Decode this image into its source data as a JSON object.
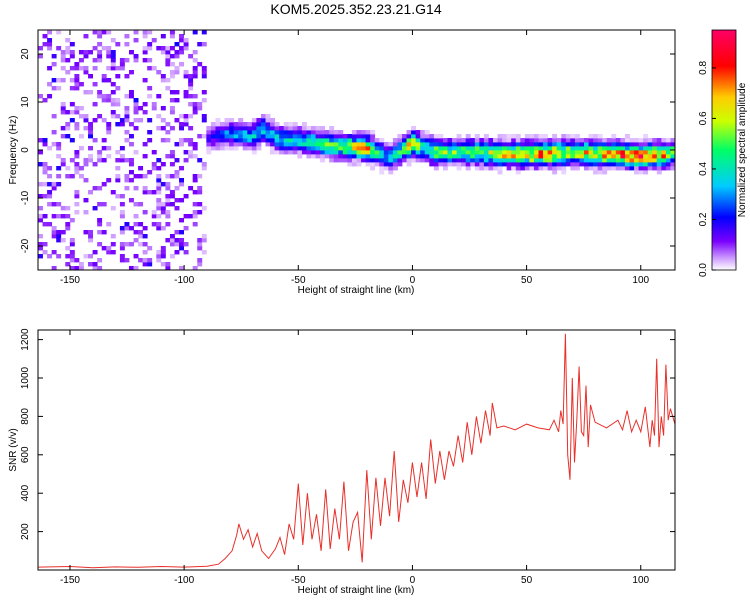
{
  "chart_data": [
    {
      "type": "heatmap",
      "title": "KOM5.2025.352.23.21.G14",
      "xlabel": "Height of straight line (km)",
      "ylabel": "Frequency (Hz)",
      "xlim": [
        -164,
        115
      ],
      "ylim": [
        -25,
        25
      ],
      "xticks": [
        -150,
        -100,
        -50,
        0,
        50,
        100
      ],
      "yticks": [
        -20,
        -10,
        0,
        10,
        20
      ],
      "colorbar": {
        "label": "Normalized spectral amplitude",
        "range": [
          0,
          0.95
        ],
        "ticks": [
          "0.0",
          "0.2",
          "0.4",
          "0.6",
          "0.8"
        ],
        "tick_values": [
          0,
          0.2,
          0.4,
          0.6,
          0.8
        ],
        "colors": [
          "#ffffff",
          "#cc99ff",
          "#7a00ff",
          "#0000ff",
          "#00ccff",
          "#00ff66",
          "#ccff00",
          "#ffcc00",
          "#ff0000",
          "#ff0066"
        ]
      },
      "noise_region": {
        "x_from": -164,
        "x_to": -90,
        "y_range": [
          -25,
          25
        ],
        "level": 0.05
      },
      "ridge": {
        "x": [
          -90,
          -80,
          -70,
          -65,
          -60,
          -50,
          -40,
          -30,
          -20,
          -15,
          -10,
          -5,
          0,
          5,
          10,
          20,
          30,
          40,
          50,
          60,
          70,
          80,
          90,
          100,
          110,
          115
        ],
        "freq": [
          2.5,
          3.5,
          2.8,
          4.5,
          2.5,
          2.0,
          1.2,
          0.8,
          0.5,
          -0.5,
          -1.5,
          -0.2,
          1.5,
          0.5,
          -0.5,
          -0.3,
          -0.5,
          -0.8,
          -0.8,
          -0.8,
          -0.5,
          -0.8,
          -0.9,
          -1.2,
          -1.0,
          -0.5
        ],
        "amplitude": [
          0.15,
          0.3,
          0.35,
          0.4,
          0.35,
          0.4,
          0.45,
          0.55,
          0.75,
          0.4,
          0.35,
          0.45,
          0.7,
          0.4,
          0.6,
          0.5,
          0.55,
          0.65,
          0.7,
          0.75,
          0.6,
          0.7,
          0.75,
          0.85,
          0.7,
          0.5
        ]
      }
    },
    {
      "type": "line",
      "xlabel": "Height of straight line (km)",
      "ylabel": "SNR (v/v)",
      "xlim": [
        -164,
        115
      ],
      "ylim": [
        0,
        1250
      ],
      "xticks": [
        -150,
        -100,
        -50,
        0,
        50,
        100
      ],
      "yticks": [
        200,
        400,
        600,
        800,
        1000,
        1200
      ],
      "color": "#e8302a",
      "series": [
        {
          "name": "SNR",
          "x": [
            -164,
            -150,
            -140,
            -130,
            -120,
            -110,
            -100,
            -90,
            -85,
            -82,
            -79,
            -77,
            -76,
            -74,
            -72,
            -70,
            -68,
            -66,
            -63,
            -60,
            -58,
            -56,
            -54,
            -52,
            -50,
            -48,
            -46,
            -44,
            -42,
            -40,
            -38,
            -36,
            -34,
            -32,
            -30,
            -28,
            -26,
            -24,
            -22,
            -20,
            -18,
            -16,
            -14,
            -12,
            -10,
            -8,
            -6,
            -4,
            -2,
            0,
            2,
            4,
            6,
            8,
            10,
            12,
            14,
            16,
            18,
            20,
            22,
            24,
            26,
            28,
            30,
            32,
            34,
            35,
            37,
            40,
            45,
            50,
            55,
            60,
            62,
            64,
            65,
            66,
            67,
            68,
            69,
            70,
            71,
            72,
            73,
            74,
            75,
            76,
            77,
            78,
            80,
            85,
            90,
            92,
            94,
            96,
            98,
            100,
            102,
            104,
            105,
            106,
            107,
            108,
            109,
            110,
            111,
            112,
            113,
            115
          ],
          "y": [
            15,
            18,
            12,
            16,
            14,
            18,
            15,
            20,
            30,
            60,
            100,
            180,
            240,
            160,
            210,
            120,
            190,
            100,
            60,
            110,
            170,
            80,
            240,
            160,
            450,
            130,
            400,
            160,
            290,
            100,
            420,
            110,
            320,
            160,
            460,
            100,
            250,
            300,
            40,
            520,
            160,
            480,
            230,
            480,
            280,
            620,
            250,
            470,
            350,
            560,
            380,
            560,
            370,
            680,
            450,
            620,
            470,
            620,
            540,
            700,
            560,
            770,
            600,
            800,
            660,
            830,
            700,
            870,
            740,
            750,
            730,
            760,
            740,
            730,
            780,
            720,
            830,
            760,
            1230,
            600,
            470,
            1000,
            560,
            780,
            1060,
            720,
            700,
            960,
            640,
            860,
            770,
            740,
            780,
            730,
            830,
            720,
            780,
            720,
            850,
            640,
            780,
            700,
            1100,
            640,
            800,
            700,
            1070,
            780,
            840,
            760
          ]
        }
      ]
    }
  ]
}
